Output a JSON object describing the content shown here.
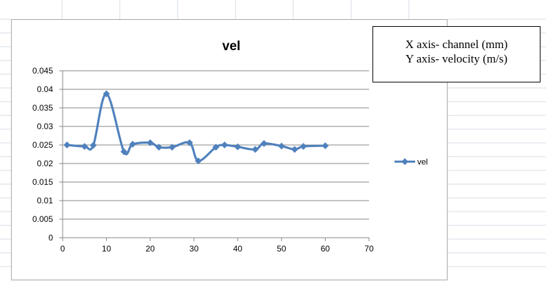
{
  "chart_data": {
    "type": "line",
    "title": "vel",
    "xlabel": "",
    "ylabel": "",
    "xlim": [
      0,
      70
    ],
    "ylim": [
      0,
      0.045
    ],
    "x_ticks": [
      "0",
      "10",
      "20",
      "30",
      "40",
      "50",
      "60",
      "70"
    ],
    "y_ticks": [
      "0",
      "0.005",
      "0.01",
      "0.015",
      "0.02",
      "0.025",
      "0.03",
      "0.035",
      "0.04",
      "0.045"
    ],
    "grid": "horizontal",
    "legend_position": "right",
    "series": [
      {
        "name": "vel",
        "color": "#4f81bd",
        "marker": "diamond",
        "smooth": true,
        "x": [
          1,
          5,
          7,
          10,
          14,
          16,
          20,
          22,
          25,
          29,
          31,
          35,
          37,
          40,
          44,
          46,
          50,
          53,
          55,
          60
        ],
        "y": [
          0.025,
          0.0246,
          0.0249,
          0.0388,
          0.0232,
          0.0252,
          0.0256,
          0.0244,
          0.0244,
          0.0256,
          0.0207,
          0.0244,
          0.025,
          0.0245,
          0.0238,
          0.0254,
          0.0247,
          0.0238,
          0.0246,
          0.0248
        ]
      }
    ]
  },
  "annotation": {
    "line1": "X axis- channel (mm)",
    "line2": "Y axis- velocity (m/s)"
  }
}
